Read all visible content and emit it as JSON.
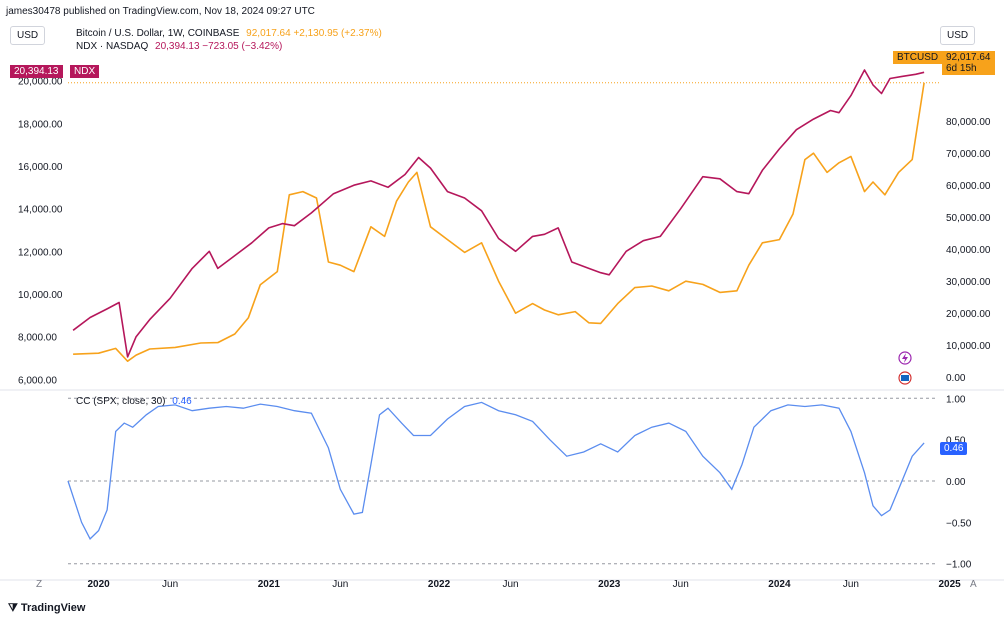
{
  "header": {
    "published": "james30478 published on TradingView.com, Nov 18, 2024 09:27 UTC"
  },
  "left_currency": "USD",
  "right_currency": "USD",
  "legend": {
    "btc_name": "Bitcoin / U.S. Dollar, 1W, COINBASE",
    "btc_values": "92,017.64  +2,130.95 (+2.37%)",
    "ndx_name": "NDX · NASDAQ",
    "ndx_values": "20,394.13  −723.05 (−3.42%)"
  },
  "tags": {
    "ndx_price": "20,394.13",
    "ndx_label": "NDX",
    "btc_label": "BTCUSD",
    "btc_price": "92,017.64",
    "btc_countdown": "6d 15h",
    "cc_value": "0.46"
  },
  "cc_legend": {
    "name": "CC (SPX, close, 30)",
    "value": "0.46"
  },
  "bottom": {
    "left_marker": "Z",
    "right_marker": "A",
    "brand": "TradingView"
  },
  "colors": {
    "btc": "#f7a21b",
    "ndx": "#b5175b",
    "cc": "#5b8def",
    "cc_tag": "#2962ff"
  },
  "chart_data": [
    {
      "type": "line",
      "title": "",
      "x_unit": "decimal year",
      "xlim": [
        2019.82,
        2024.92
      ],
      "x_tick_labels": [
        "2020",
        "Jun",
        "2021",
        "Jun",
        "2022",
        "Jun",
        "2023",
        "Jun",
        "2024",
        "Jun",
        "2025"
      ],
      "x_tick_values": [
        2020.0,
        2020.42,
        2021.0,
        2021.42,
        2022.0,
        2022.42,
        2023.0,
        2023.42,
        2024.0,
        2024.42,
        2025.0
      ],
      "left_axis": {
        "ylim": [
          5500,
          20500
        ],
        "ticks": [
          "6,000.00",
          "8,000.00",
          "10,000.00",
          "12,000.00",
          "14,000.00",
          "16,000.00",
          "18,000.00",
          "20,000.00"
        ],
        "tick_values": [
          6000,
          8000,
          10000,
          12000,
          14000,
          16000,
          18000,
          20000
        ]
      },
      "right_axis": {
        "ylim": [
          -4000,
          96000
        ],
        "ticks": [
          "0.00",
          "10,000.00",
          "20,000.00",
          "30,000.00",
          "40,000.00",
          "50,000.00",
          "60,000.00",
          "70,000.00",
          "80,000.00"
        ],
        "tick_values": [
          0,
          10000,
          20000,
          30000,
          40000,
          50000,
          60000,
          70000,
          80000
        ]
      },
      "series": [
        {
          "name": "NDX · NASDAQ",
          "axis": "left",
          "x": [
            2019.85,
            2019.95,
            2020.05,
            2020.12,
            2020.17,
            2020.22,
            2020.3,
            2020.42,
            2020.55,
            2020.65,
            2020.7,
            2020.8,
            2020.9,
            2021.0,
            2021.08,
            2021.15,
            2021.25,
            2021.38,
            2021.5,
            2021.6,
            2021.7,
            2021.8,
            2021.88,
            2021.95,
            2022.05,
            2022.15,
            2022.25,
            2022.35,
            2022.45,
            2022.55,
            2022.62,
            2022.7,
            2022.78,
            2022.88,
            2022.95,
            2023.0,
            2023.1,
            2023.2,
            2023.3,
            2023.42,
            2023.55,
            2023.65,
            2023.75,
            2023.82,
            2023.9,
            2024.0,
            2024.1,
            2024.2,
            2024.3,
            2024.35,
            2024.42,
            2024.5,
            2024.55,
            2024.6,
            2024.65,
            2024.72,
            2024.8,
            2024.85
          ],
          "y": [
            8300,
            8900,
            9300,
            9600,
            7050,
            8000,
            8800,
            9800,
            11200,
            12000,
            11200,
            11800,
            12400,
            13100,
            13300,
            13200,
            13800,
            14700,
            15100,
            15300,
            15000,
            15600,
            16400,
            15900,
            14800,
            14500,
            13900,
            12600,
            12000,
            12700,
            12800,
            13100,
            11500,
            11200,
            11000,
            10900,
            12000,
            12500,
            12700,
            14000,
            15500,
            15400,
            14800,
            14700,
            15800,
            16800,
            17700,
            18200,
            18600,
            18500,
            19300,
            20500,
            19800,
            19400,
            20100,
            20200,
            20300,
            20394
          ]
        },
        {
          "name": "Bitcoin / U.S. Dollar",
          "axis": "right",
          "x": [
            2019.85,
            2020.0,
            2020.1,
            2020.17,
            2020.22,
            2020.3,
            2020.45,
            2020.6,
            2020.7,
            2020.8,
            2020.88,
            2020.95,
            2021.05,
            2021.12,
            2021.2,
            2021.28,
            2021.35,
            2021.42,
            2021.5,
            2021.55,
            2021.6,
            2021.68,
            2021.75,
            2021.82,
            2021.87,
            2021.95,
            2022.05,
            2022.15,
            2022.25,
            2022.35,
            2022.45,
            2022.55,
            2022.62,
            2022.7,
            2022.8,
            2022.88,
            2022.95,
            2023.05,
            2023.15,
            2023.25,
            2023.35,
            2023.45,
            2023.55,
            2023.65,
            2023.75,
            2023.82,
            2023.9,
            2024.0,
            2024.08,
            2024.15,
            2024.2,
            2024.28,
            2024.35,
            2024.42,
            2024.5,
            2024.55,
            2024.62,
            2024.7,
            2024.78,
            2024.85
          ],
          "y": [
            7200,
            7500,
            9000,
            5000,
            6900,
            8800,
            9300,
            10700,
            10800,
            13500,
            18600,
            28900,
            33000,
            57000,
            58000,
            56000,
            36000,
            35000,
            33000,
            40000,
            47000,
            44000,
            55000,
            61000,
            64000,
            47000,
            43000,
            39000,
            42000,
            30000,
            20000,
            23000,
            21000,
            19500,
            20500,
            17000,
            16800,
            23000,
            28000,
            28500,
            27000,
            30000,
            29000,
            26500,
            27000,
            35000,
            42000,
            43000,
            51000,
            68000,
            70000,
            64000,
            67000,
            69000,
            58000,
            61000,
            57000,
            64000,
            68000,
            92017.64
          ]
        }
      ]
    },
    {
      "type": "line",
      "title": "",
      "xlim": [
        2019.82,
        2024.92
      ],
      "ylim": [
        -1.1,
        1.1
      ],
      "ticks": [
        "1.00",
        "0.50",
        "0.00",
        "−0.50",
        "−1.00"
      ],
      "tick_values": [
        1,
        0.5,
        0,
        -0.5,
        -1
      ],
      "series": [
        {
          "name": "CC (SPX, close, 30)",
          "x": [
            2019.82,
            2019.9,
            2019.95,
            2020.0,
            2020.05,
            2020.1,
            2020.15,
            2020.2,
            2020.28,
            2020.35,
            2020.45,
            2020.55,
            2020.65,
            2020.75,
            2020.85,
            2020.95,
            2021.05,
            2021.15,
            2021.25,
            2021.35,
            2021.42,
            2021.5,
            2021.55,
            2021.6,
            2021.65,
            2021.7,
            2021.78,
            2021.85,
            2021.95,
            2022.05,
            2022.15,
            2022.25,
            2022.35,
            2022.45,
            2022.55,
            2022.65,
            2022.75,
            2022.85,
            2022.95,
            2023.05,
            2023.15,
            2023.25,
            2023.35,
            2023.45,
            2023.55,
            2023.65,
            2023.72,
            2023.78,
            2023.85,
            2023.95,
            2024.05,
            2024.15,
            2024.25,
            2024.35,
            2024.42,
            2024.5,
            2024.55,
            2024.6,
            2024.65,
            2024.72,
            2024.78,
            2024.85
          ],
          "y": [
            0.0,
            -0.5,
            -0.7,
            -0.6,
            -0.35,
            0.6,
            0.7,
            0.65,
            0.8,
            0.9,
            0.92,
            0.85,
            0.88,
            0.9,
            0.88,
            0.93,
            0.9,
            0.85,
            0.82,
            0.4,
            -0.1,
            -0.4,
            -0.38,
            0.2,
            0.8,
            0.88,
            0.7,
            0.55,
            0.55,
            0.75,
            0.9,
            0.95,
            0.85,
            0.8,
            0.72,
            0.5,
            0.3,
            0.35,
            0.45,
            0.35,
            0.55,
            0.65,
            0.7,
            0.6,
            0.3,
            0.1,
            -0.1,
            0.2,
            0.65,
            0.85,
            0.92,
            0.9,
            0.92,
            0.88,
            0.6,
            0.1,
            -0.3,
            -0.42,
            -0.35,
            0.0,
            0.3,
            0.46
          ]
        }
      ]
    }
  ]
}
